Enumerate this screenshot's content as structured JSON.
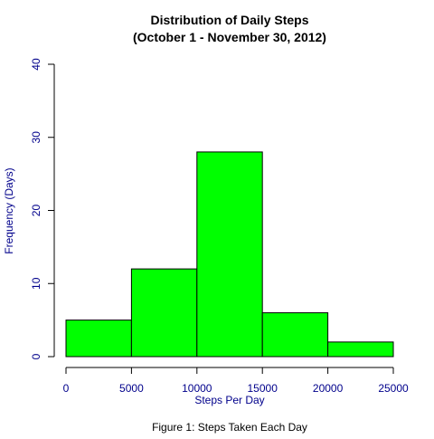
{
  "colors": {
    "bar_fill": "#00FF00",
    "bar_stroke": "#000000",
    "axis_text": "#00008B",
    "axis_line": "#000000",
    "title": "#000000",
    "background": "#ffffff"
  },
  "chart_data": {
    "type": "bar",
    "variant": "histogram",
    "title": "Distribution of Daily Steps",
    "subtitle": "(October 1 - November 30, 2012)",
    "xlabel": "Steps Per Day",
    "ylabel": "Frequency (Days)",
    "bins": [
      {
        "from": 0,
        "to": 5000,
        "value": 5
      },
      {
        "from": 5000,
        "to": 10000,
        "value": 12
      },
      {
        "from": 10000,
        "to": 15000,
        "value": 28
      },
      {
        "from": 15000,
        "to": 20000,
        "value": 6
      },
      {
        "from": 20000,
        "to": 25000,
        "value": 2
      }
    ],
    "xlim": [
      0,
      25000
    ],
    "ylim": [
      0,
      40
    ],
    "x_ticks": [
      "0",
      "5000",
      "10000",
      "15000",
      "20000",
      "25000"
    ],
    "y_ticks": [
      "0",
      "10",
      "20",
      "30",
      "40"
    ],
    "grid": false,
    "legend": "none"
  },
  "caption": "Figure 1: Steps Taken Each Day"
}
